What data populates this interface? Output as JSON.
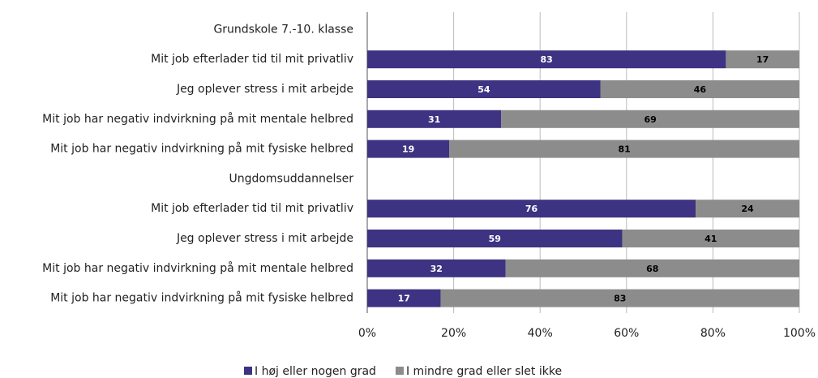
{
  "chart_data": {
    "type": "bar",
    "orientation": "horizontal",
    "stacked": true,
    "categories": [
      "Grundskole 7.-10. klasse",
      "Mit job efterlader tid til mit privatliv",
      "Jeg oplever stress i mit arbejde",
      "Mit job har negativ indvirkning på mit mentale helbred",
      "Mit job har negativ indvirkning på mit fysiske helbred",
      "Ungdomsuddannelser",
      "Mit job efterlader tid til mit privatliv",
      "Jeg oplever stress i mit arbejde",
      "Mit job har negativ indvirkning på mit mentale helbred",
      "Mit job har negativ indvirkning på mit fysiske helbred"
    ],
    "series": [
      {
        "name": "I høj eller nogen grad",
        "color": "#3d3382",
        "label_color": "#ffffff",
        "values": [
          null,
          83,
          54,
          31,
          19,
          null,
          76,
          59,
          32,
          17
        ]
      },
      {
        "name": "I mindre grad eller slet ikke",
        "color": "#8c8c8c",
        "label_color": "#000000",
        "values": [
          null,
          17,
          46,
          69,
          81,
          null,
          24,
          41,
          68,
          83
        ]
      }
    ],
    "xlim": [
      0,
      100
    ],
    "xticks": [
      {
        "value": 0,
        "label": "0%"
      },
      {
        "value": 20,
        "label": "20%"
      },
      {
        "value": 40,
        "label": "40%"
      },
      {
        "value": 60,
        "label": "60%"
      },
      {
        "value": 80,
        "label": "80%"
      },
      {
        "value": 100,
        "label": "100%"
      }
    ],
    "grid": true,
    "legend": "bottom"
  }
}
